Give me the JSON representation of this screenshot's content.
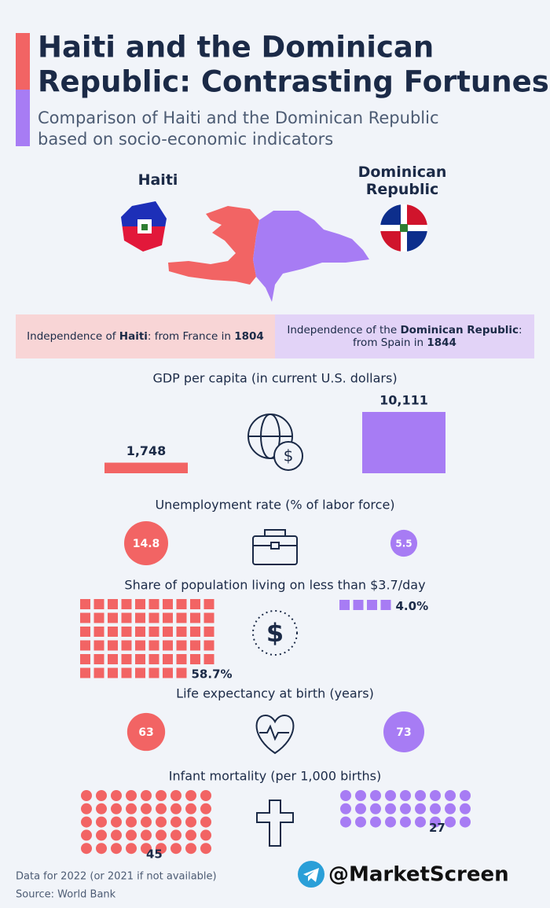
{
  "header": {
    "title_lines": [
      "Haiti and the Dominican",
      "Republic: Contrasting Fortunes"
    ],
    "subtitle_lines": [
      "Comparison of Haiti and the Dominican Republic",
      "based on socio-economic indicators"
    ]
  },
  "countries": [
    {
      "name": "Haiti",
      "color": "#f26464"
    },
    {
      "name": "Dominican Republic",
      "color": "#a77cf4"
    }
  ],
  "independence": [
    {
      "lines": [
        [
          {
            "text": "Independence of ",
            "bold": false
          },
          {
            "text": "Haiti",
            "bold": true
          },
          {
            "text": ": from France in ",
            "bold": false
          },
          {
            "text": "1804",
            "bold": true
          }
        ]
      ]
    },
    {
      "lines": [
        [
          {
            "text": "Independence of the ",
            "bold": false
          },
          {
            "text": "Dominican Republic",
            "bold": true
          },
          {
            "text": ":",
            "bold": false
          }
        ],
        [
          {
            "text": "from Spain in ",
            "bold": false
          },
          {
            "text": "1844",
            "bold": true
          }
        ]
      ]
    }
  ],
  "chart_data": [
    {
      "type": "bar",
      "title": "GDP per capita (in current U.S. dollars)",
      "values": [
        1748,
        10111
      ],
      "value_labels": [
        "1,748",
        "10,111"
      ],
      "colors": [
        "#f26464",
        "#a77cf4"
      ]
    },
    {
      "type": "bubble",
      "title": "Unemployment rate (% of labor force)",
      "values": [
        14.8,
        5.5
      ],
      "colors": [
        "#f26464",
        "#a77cf4"
      ]
    },
    {
      "type": "waffle",
      "title": "Share of population living on less than $3.7/day",
      "values": [
        58.7,
        4.0
      ],
      "value_labels": [
        "58.7%",
        "4.0%"
      ],
      "colors": [
        "#f26464",
        "#a77cf4"
      ]
    },
    {
      "type": "bubble",
      "title": "Life expectancy at birth (years)",
      "values": [
        63,
        73
      ],
      "colors": [
        "#f26464",
        "#a77cf4"
      ]
    },
    {
      "type": "dots",
      "title": "Infant mortality (per 1,000 births)",
      "values": [
        45,
        27
      ],
      "colors": [
        "#f26464",
        "#a77cf4"
      ]
    }
  ],
  "footer": {
    "note": "Data for 2022 (or 2021 if not available)",
    "source": "Source: World Bank",
    "brand": "@MarketScreen"
  }
}
